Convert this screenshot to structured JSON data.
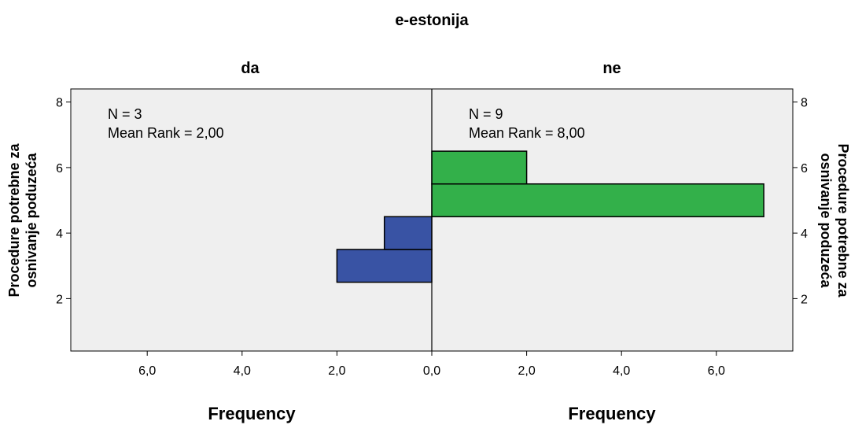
{
  "chart_data": {
    "type": "bar",
    "title": "e-estonija",
    "y_axis_label_lines": [
      "Procedure potrebne za",
      "osnivanje poduzeća"
    ],
    "y_ticks": [
      "2",
      "4",
      "6",
      "8"
    ],
    "ylim": [
      0.4,
      8.4
    ],
    "bin_width": 1,
    "xlim": [
      0,
      7.6
    ],
    "colors": {
      "plot_bg": "#efefef",
      "da": "#3953a4",
      "ne": "#33b04a",
      "edge": "#000000"
    },
    "panels": [
      {
        "name": "da",
        "direction": "left",
        "stats": {
          "n": "N = 3",
          "mean_rank": "Mean Rank = 2,00"
        },
        "x_ticks": [
          "6,0",
          "4,0",
          "2,0",
          "0,0"
        ],
        "xlabel": "Frequency",
        "bins": [
          {
            "y_center": 3,
            "frequency": 2
          },
          {
            "y_center": 4,
            "frequency": 1
          }
        ]
      },
      {
        "name": "ne",
        "direction": "right",
        "stats": {
          "n": "N = 9",
          "mean_rank": "Mean Rank = 8,00"
        },
        "x_ticks": [
          "2,0",
          "4,0",
          "6,0"
        ],
        "xlabel": "Frequency",
        "bins": [
          {
            "y_center": 5,
            "frequency": 7
          },
          {
            "y_center": 6,
            "frequency": 2
          }
        ]
      }
    ]
  }
}
